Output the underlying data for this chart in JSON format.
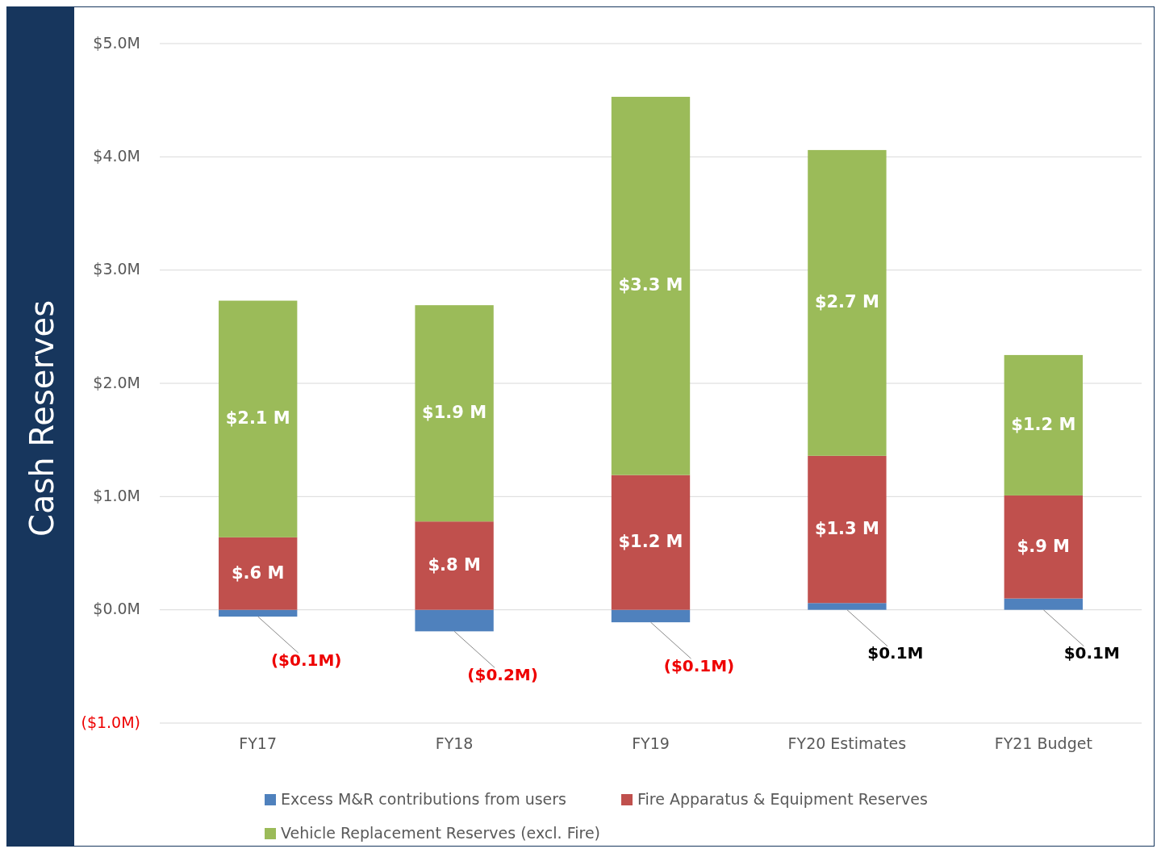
{
  "chart_data": {
    "type": "bar",
    "stacked": true,
    "ylabel": "Cash Reserves",
    "categories": [
      "FY17",
      "FY18",
      "FY19",
      "FY20 Estimates",
      "FY21 Budget"
    ],
    "series": [
      {
        "name": "Excess M&R contributions from users",
        "color": "#4f81bd",
        "values": [
          -0.06,
          -0.19,
          -0.11,
          0.06,
          0.1
        ],
        "value_labels": [
          "($0.1M)",
          "($0.2M)",
          "($0.1M)",
          "$0.1M",
          "$0.1M"
        ]
      },
      {
        "name": "Fire Apparatus & Equipment Reserves",
        "color": "#c0504d",
        "values": [
          0.64,
          0.78,
          1.19,
          1.3,
          0.91
        ],
        "value_labels": [
          "$.6 M",
          "$.8 M",
          "$1.2 M",
          "$1.3 M",
          "$.9 M"
        ]
      },
      {
        "name": "Vehicle Replacement Reserves (excl. Fire)",
        "color": "#9bbb59",
        "values": [
          2.09,
          1.91,
          3.34,
          2.7,
          1.24
        ],
        "value_labels": [
          "$2.1 M",
          "$1.9 M",
          "$3.3 M",
          "$2.7 M",
          "$1.2 M"
        ]
      }
    ],
    "ylim": [
      -1,
      5
    ],
    "yticks": [
      {
        "value": -1,
        "label": "($1.0M)"
      },
      {
        "value": 0,
        "label": "$0.0M"
      },
      {
        "value": 1,
        "label": "$1.0M"
      },
      {
        "value": 2,
        "label": "$2.0M"
      },
      {
        "value": 3,
        "label": "$3.0M"
      },
      {
        "value": 4,
        "label": "$4.0M"
      },
      {
        "value": 5,
        "label": "$5.0M"
      }
    ],
    "grid": "y",
    "legend": "bottom"
  }
}
